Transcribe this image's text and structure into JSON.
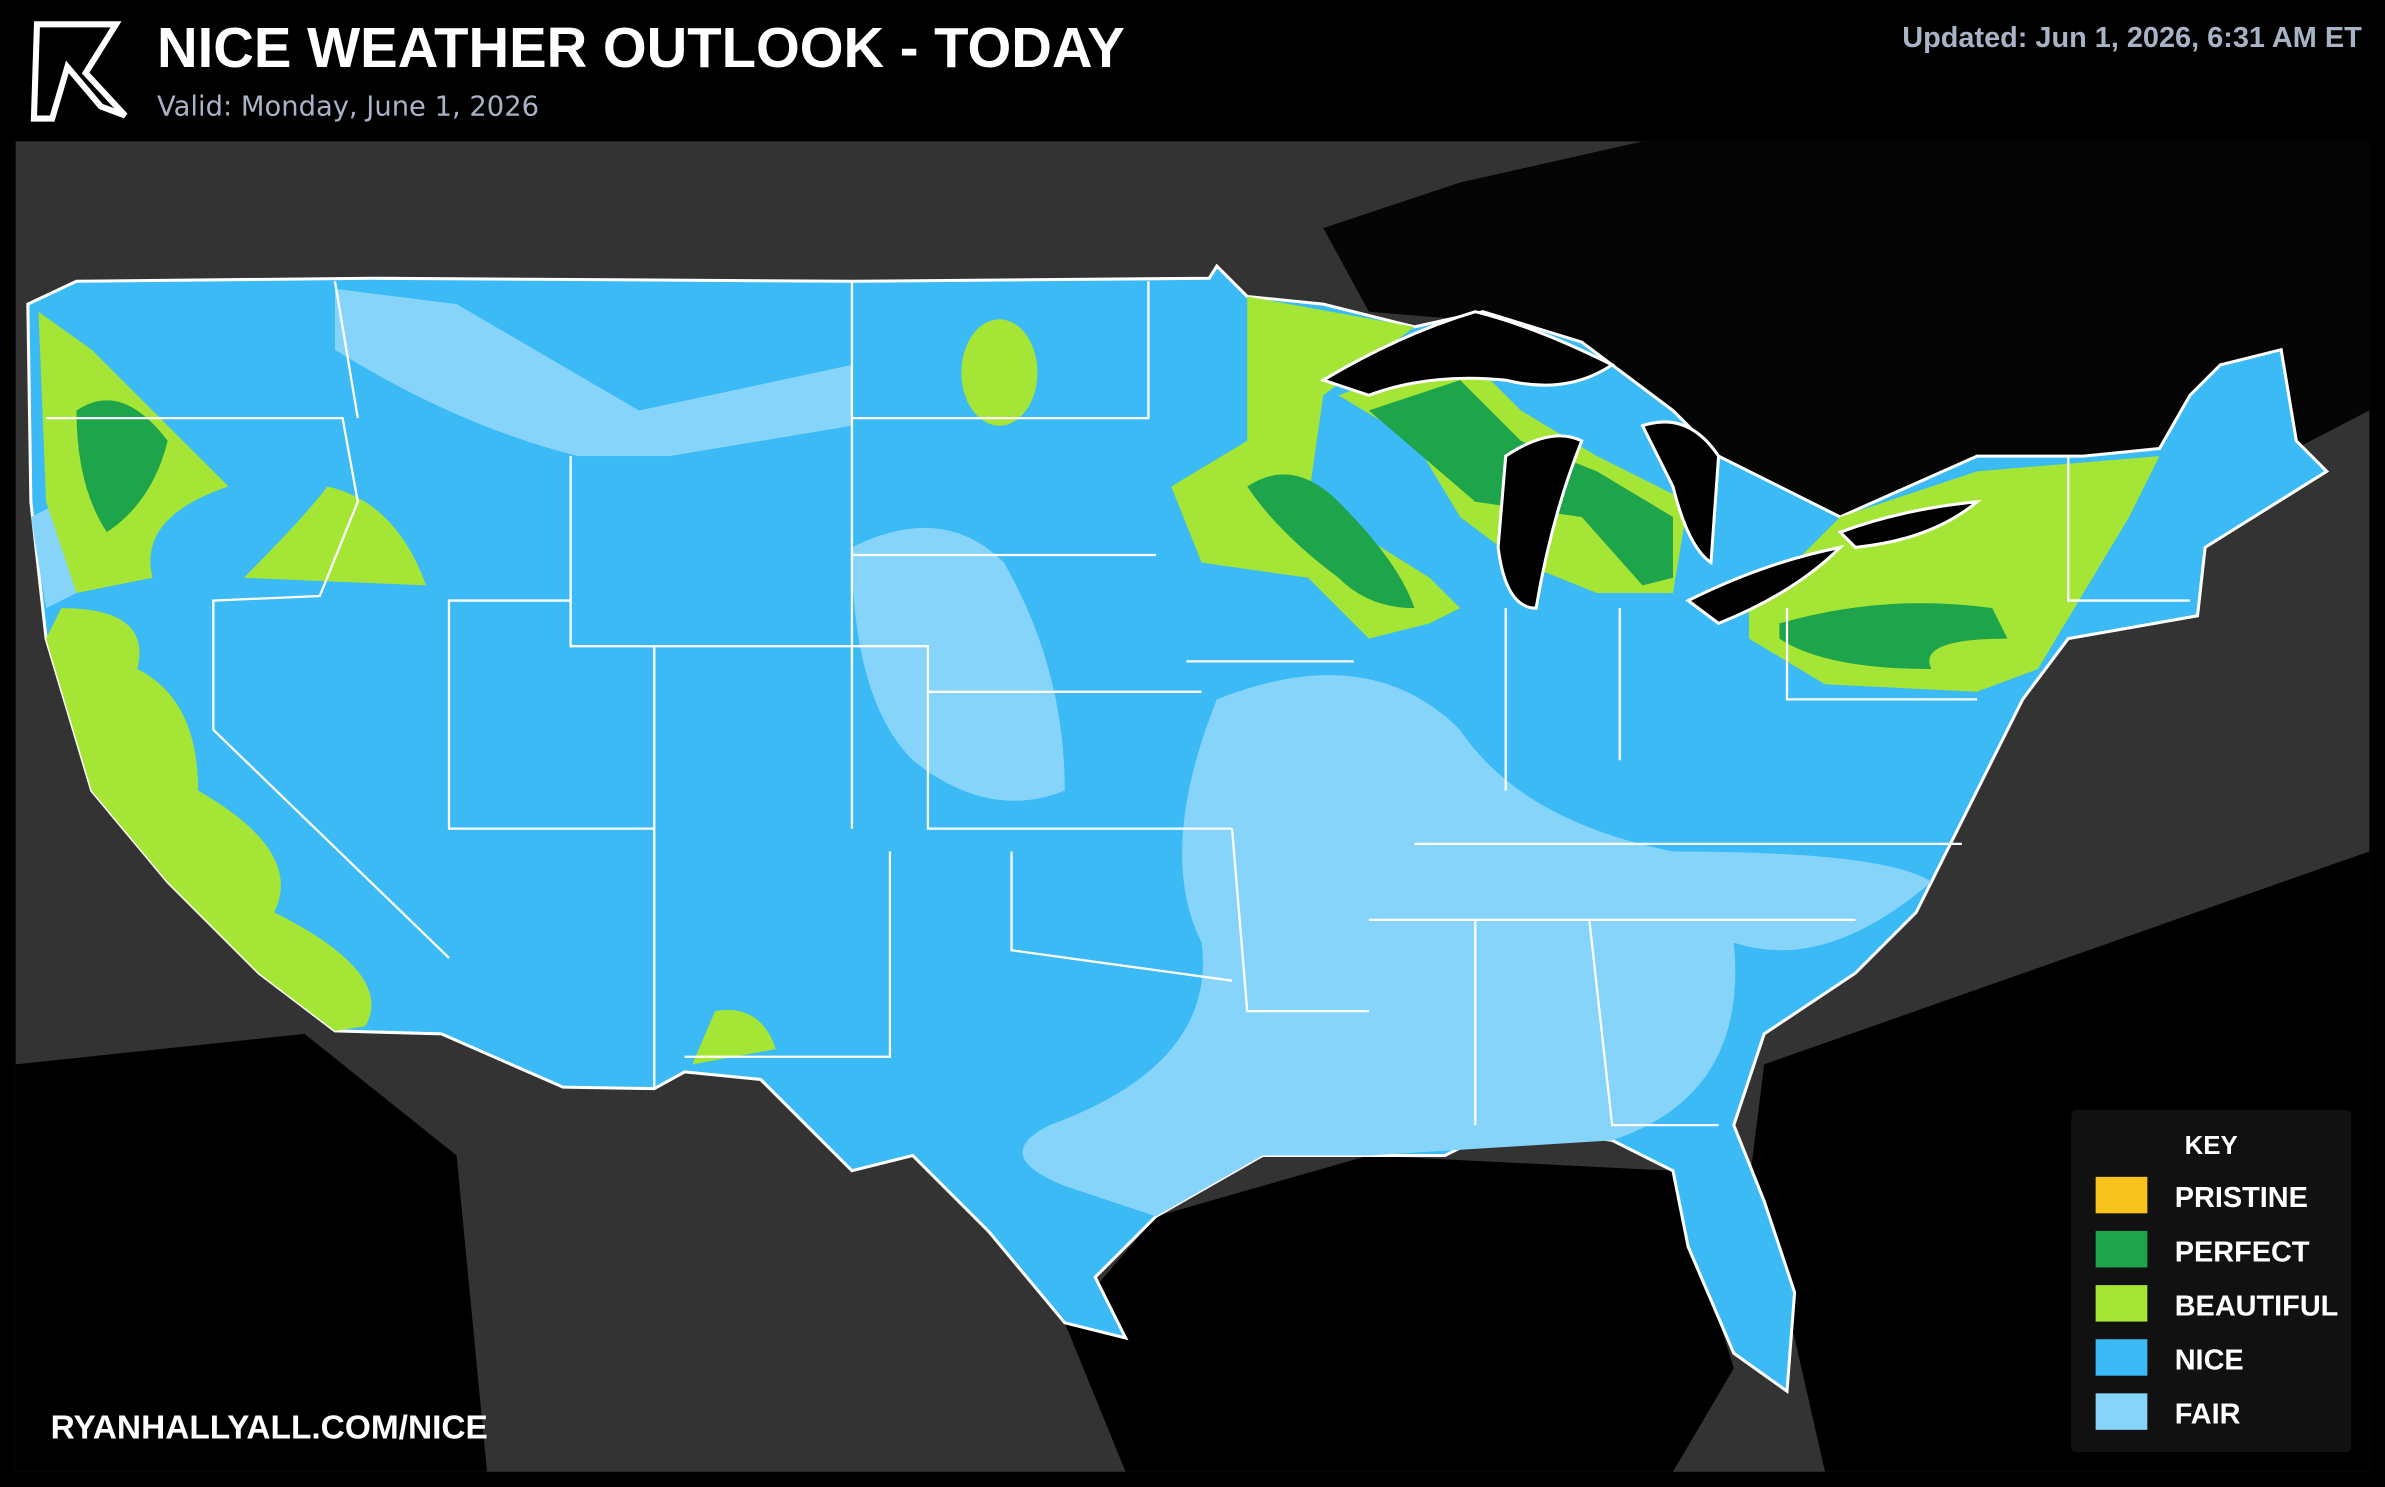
{
  "header": {
    "title": "NICE WEATHER OUTLOOK - TODAY",
    "subtitle": "Valid: Monday, June 1, 2026",
    "updated": "Updated: Jun 1, 2026, 6:31 AM ET"
  },
  "legend": {
    "title": "KEY",
    "items": [
      {
        "label": "PRISTINE",
        "color": "#f8c31c"
      },
      {
        "label": "PERFECT",
        "color": "#1ea44a"
      },
      {
        "label": "BEAUTIFUL",
        "color": "#a5e535"
      },
      {
        "label": "NICE",
        "color": "#3bbaf5"
      },
      {
        "label": "FAIR",
        "color": "#87d4fb"
      }
    ]
  },
  "footer": {
    "url": "RYANHALLYALL.COM/NICE"
  }
}
